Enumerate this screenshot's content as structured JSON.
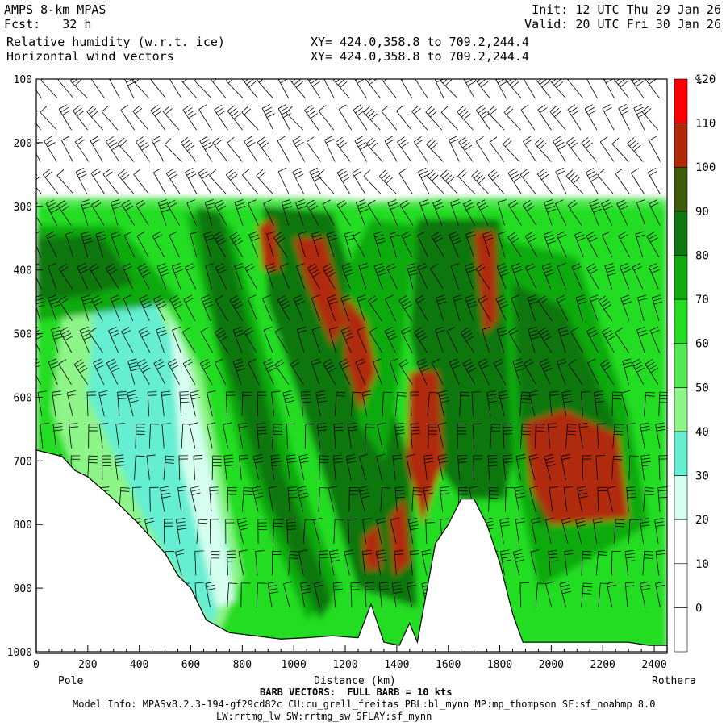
{
  "header": {
    "model": "AMPS 8-km MPAS",
    "fcst": "Fcst:   32 h",
    "field1": "Relative humidity (w.r.t. ice)",
    "field2": "Horizontal wind vectors",
    "init": "Init: 12 UTC Thu 29 Jan 26",
    "valid": "Valid: 20 UTC Fri 30 Jan 26",
    "xy1": "XY= 424.0,358.8 to 709.2,244.4",
    "xy2": "XY= 424.0,358.8 to 709.2,244.4"
  },
  "footer": {
    "barb": "BARB VECTORS:  FULL BARB = 10 kts",
    "model_info": "Model Info: MPASv8.2.3-194-gf29cd82c CU:cu_grell_freitas PBL:bl_mynn MP:mp_thompson SF:sf_noahmp 8.0",
    "model_info2": "LW:rrtmg_lw SW:rrtmg_sw SFLAY:sf_mynn"
  },
  "chart_data": {
    "type": "heatmap",
    "title": "Relative humidity (w.r.t. ice)",
    "xlabel": "Distance (km)",
    "ylabel": "",
    "xlim": [
      0,
      2450
    ],
    "ylim": [
      1000,
      100
    ],
    "x_ticks": [
      0,
      200,
      400,
      600,
      800,
      1000,
      1200,
      1400,
      1600,
      1800,
      2000,
      2200,
      2400
    ],
    "y_ticks": [
      100,
      200,
      300,
      400,
      500,
      600,
      700,
      800,
      900,
      1000
    ],
    "x_end_labels": {
      "left": "Pole",
      "right": "Rothera"
    },
    "colorbar": {
      "unit": "%",
      "levels": [
        0,
        10,
        20,
        30,
        40,
        50,
        60,
        70,
        80,
        90,
        100,
        110,
        120
      ],
      "colors": [
        "#ffffff",
        "#ffffff",
        "#ffffff",
        "#d6fff0",
        "#66eed2",
        "#8ef588",
        "#55e855",
        "#22dd22",
        "#11aa11",
        "#117711",
        "#3c5c0c",
        "#b02a0a",
        "#ff0000"
      ]
    },
    "terrain_pressure": [
      [
        0,
        683
      ],
      [
        100,
        693
      ],
      [
        150,
        715
      ],
      [
        200,
        725
      ],
      [
        300,
        760
      ],
      [
        400,
        800
      ],
      [
        500,
        845
      ],
      [
        550,
        880
      ],
      [
        600,
        900
      ],
      [
        660,
        950
      ],
      [
        750,
        970
      ],
      [
        850,
        975
      ],
      [
        950,
        980
      ],
      [
        1050,
        978
      ],
      [
        1150,
        975
      ],
      [
        1250,
        978
      ],
      [
        1300,
        925
      ],
      [
        1350,
        985
      ],
      [
        1410,
        990
      ],
      [
        1450,
        955
      ],
      [
        1480,
        985
      ],
      [
        1550,
        830
      ],
      [
        1600,
        800
      ],
      [
        1650,
        760
      ],
      [
        1700,
        760
      ],
      [
        1750,
        800
      ],
      [
        1800,
        860
      ],
      [
        1850,
        940
      ],
      [
        1890,
        985
      ],
      [
        2000,
        985
      ],
      [
        2100,
        985
      ],
      [
        2200,
        985
      ],
      [
        2300,
        985
      ],
      [
        2380,
        990
      ],
      [
        2450,
        990
      ]
    ]
  }
}
